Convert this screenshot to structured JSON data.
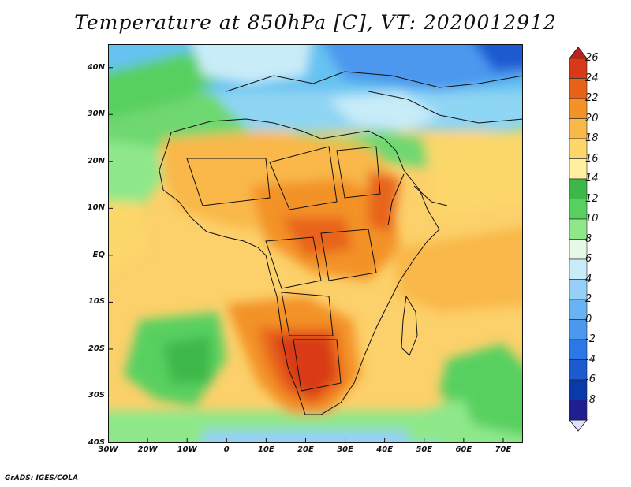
{
  "title": "Temperature at 850hPa [C], VT: 2020012912",
  "credit": "GrADS: IGES/COLA",
  "map": {
    "projection": "lat-lon",
    "lon_range": [
      -30,
      75
    ],
    "lat_range": [
      -40,
      45
    ],
    "lat_ticks": [
      {
        "value": 40,
        "label": "40N"
      },
      {
        "value": 30,
        "label": "30N"
      },
      {
        "value": 20,
        "label": "20N"
      },
      {
        "value": 10,
        "label": "10N"
      },
      {
        "value": 0,
        "label": "EQ"
      },
      {
        "value": -10,
        "label": "10S"
      },
      {
        "value": -20,
        "label": "20S"
      },
      {
        "value": -30,
        "label": "30S"
      },
      {
        "value": -40,
        "label": "40S"
      }
    ],
    "lon_ticks": [
      {
        "value": -30,
        "label": "30W"
      },
      {
        "value": -20,
        "label": "20W"
      },
      {
        "value": -10,
        "label": "10W"
      },
      {
        "value": 0,
        "label": "0"
      },
      {
        "value": 10,
        "label": "10E"
      },
      {
        "value": 20,
        "label": "20E"
      },
      {
        "value": 30,
        "label": "30E"
      },
      {
        "value": 40,
        "label": "40E"
      },
      {
        "value": 50,
        "label": "50E"
      },
      {
        "value": 60,
        "label": "60E"
      },
      {
        "value": 70,
        "label": "70E"
      }
    ]
  },
  "colorbar": {
    "levels": [
      "-8",
      "-6",
      "-4",
      "-2",
      "0",
      "2",
      "4",
      "6",
      "8",
      "10",
      "12",
      "14",
      "16",
      "18",
      "20",
      "22",
      "24",
      "26"
    ],
    "colors": [
      "#e0e0ff",
      "#1f1f8f",
      "#0a3aa8",
      "#1b5ad0",
      "#2c78e6",
      "#4b98ee",
      "#6ab3f2",
      "#96d0f6",
      "#c8ecf8",
      "#e6f8e6",
      "#8ee88a",
      "#58d060",
      "#3cb84a",
      "#fff0a0",
      "#fcd76a",
      "#f9b84a",
      "#f39226",
      "#e8631a",
      "#d83a18",
      "#c0201a"
    ]
  }
}
